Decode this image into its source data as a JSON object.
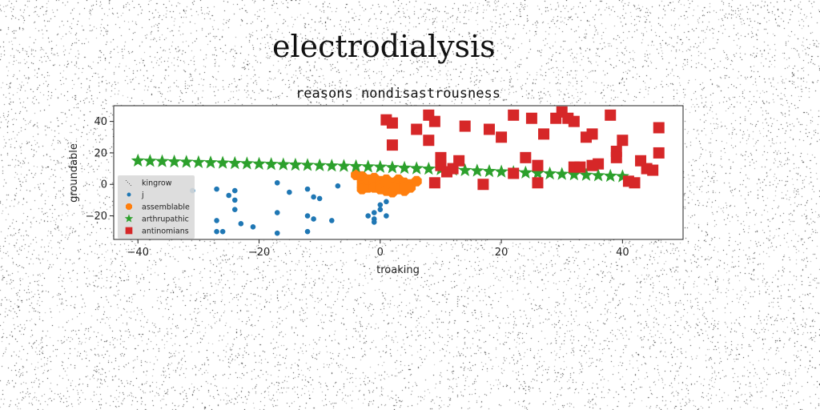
{
  "figure_title": "electrodialysis",
  "chart_data": {
    "type": "scatter",
    "title": "reasons nondisastrousness",
    "xlabel": "troaking",
    "ylabel": "groundable",
    "xlim": [
      -44,
      50
    ],
    "ylim": [
      -35,
      50
    ],
    "xticks": [
      -40,
      -20,
      0,
      20,
      40
    ],
    "yticks": [
      -20,
      0,
      20,
      40
    ],
    "grid": false,
    "legend_position": "lower-left",
    "series": [
      {
        "name": "kingrow",
        "marker": "pixel",
        "color": "#1f77b4",
        "points": []
      },
      {
        "name": "j",
        "marker": "circle",
        "color": "#1f77b4",
        "points": [
          [
            -31,
            -4
          ],
          [
            -27,
            -3
          ],
          [
            -27,
            -23
          ],
          [
            -27,
            -30
          ],
          [
            -26,
            -30
          ],
          [
            -25,
            -7
          ],
          [
            -24,
            -10
          ],
          [
            -24,
            -4
          ],
          [
            -24,
            -16
          ],
          [
            -23,
            -25
          ],
          [
            -21,
            -27
          ],
          [
            -17,
            1
          ],
          [
            -17,
            -18
          ],
          [
            -17,
            -31
          ],
          [
            -15,
            -5
          ],
          [
            -12,
            -3
          ],
          [
            -12,
            -20
          ],
          [
            -12,
            -30
          ],
          [
            -11,
            -8
          ],
          [
            -11,
            -22
          ],
          [
            -10,
            -9
          ],
          [
            -8,
            -23
          ],
          [
            -7,
            -1
          ],
          [
            -2,
            -20
          ],
          [
            -1,
            -18
          ],
          [
            -1,
            -22
          ],
          [
            -1,
            -24
          ],
          [
            0,
            -16
          ],
          [
            0,
            -13
          ],
          [
            1,
            -20
          ],
          [
            1,
            -11
          ]
        ]
      },
      {
        "name": "assemblable",
        "marker": "octagon",
        "color": "#ff7f0e",
        "points": [
          [
            -4,
            6
          ],
          [
            -3,
            5
          ],
          [
            -3,
            2
          ],
          [
            -3,
            -1
          ],
          [
            -3,
            -3
          ],
          [
            -2,
            0
          ],
          [
            -2,
            -2
          ],
          [
            -2,
            3
          ],
          [
            -1,
            4
          ],
          [
            -1,
            1
          ],
          [
            -1,
            -2
          ],
          [
            0,
            2
          ],
          [
            0,
            -1
          ],
          [
            0,
            -3
          ],
          [
            1,
            3
          ],
          [
            1,
            0
          ],
          [
            1,
            -4
          ],
          [
            2,
            1
          ],
          [
            2,
            -2
          ],
          [
            2,
            -5
          ],
          [
            3,
            3
          ],
          [
            3,
            0
          ],
          [
            3,
            -3
          ],
          [
            4,
            1
          ],
          [
            4,
            -4
          ],
          [
            4,
            -2
          ],
          [
            5,
            0
          ],
          [
            5,
            -2
          ],
          [
            6,
            2
          ]
        ]
      },
      {
        "name": "arthrupathic",
        "marker": "star",
        "color": "#2ca02c",
        "points": [
          [
            -40,
            15
          ],
          [
            -38,
            14.8
          ],
          [
            -36,
            14.6
          ],
          [
            -34,
            14.4
          ],
          [
            -32,
            14.2
          ],
          [
            -30,
            14
          ],
          [
            -28,
            13.8
          ],
          [
            -26,
            13.6
          ],
          [
            -24,
            13.4
          ],
          [
            -22,
            13.2
          ],
          [
            -20,
            13
          ],
          [
            -18,
            12.8
          ],
          [
            -16,
            12.6
          ],
          [
            -14,
            12.4
          ],
          [
            -12,
            12.2
          ],
          [
            -10,
            12
          ],
          [
            -8,
            11.8
          ],
          [
            -6,
            11.6
          ],
          [
            -4,
            11.4
          ],
          [
            -2,
            11.2
          ],
          [
            0,
            11
          ],
          [
            2,
            10.7
          ],
          [
            4,
            10.4
          ],
          [
            6,
            10.1
          ],
          [
            8,
            9.8
          ],
          [
            10,
            9.5
          ],
          [
            12,
            9.2
          ],
          [
            14,
            8.9
          ],
          [
            16,
            8.6
          ],
          [
            18,
            8.3
          ],
          [
            20,
            8
          ],
          [
            22,
            7.7
          ],
          [
            24,
            7.4
          ],
          [
            26,
            7.1
          ],
          [
            28,
            6.8
          ],
          [
            30,
            6.5
          ],
          [
            32,
            6.2
          ],
          [
            34,
            5.9
          ],
          [
            36,
            5.6
          ],
          [
            38,
            5.3
          ],
          [
            40,
            5
          ]
        ]
      },
      {
        "name": "antinomians",
        "marker": "square",
        "color": "#d62728",
        "points": [
          [
            1,
            41
          ],
          [
            2,
            39
          ],
          [
            2,
            25
          ],
          [
            6,
            35
          ],
          [
            8,
            44
          ],
          [
            8,
            28
          ],
          [
            9,
            1
          ],
          [
            9,
            40
          ],
          [
            10,
            12
          ],
          [
            10,
            17
          ],
          [
            11,
            8
          ],
          [
            12,
            10
          ],
          [
            13,
            15
          ],
          [
            14,
            37
          ],
          [
            17,
            0
          ],
          [
            18,
            35
          ],
          [
            20,
            30
          ],
          [
            22,
            7
          ],
          [
            22,
            44
          ],
          [
            24,
            17
          ],
          [
            25,
            42
          ],
          [
            26,
            12
          ],
          [
            26,
            1
          ],
          [
            27,
            32
          ],
          [
            29,
            42
          ],
          [
            30,
            46
          ],
          [
            31,
            42
          ],
          [
            32,
            40
          ],
          [
            32,
            11
          ],
          [
            33,
            11
          ],
          [
            34,
            30
          ],
          [
            35,
            12
          ],
          [
            35,
            32
          ],
          [
            36,
            13
          ],
          [
            38,
            44
          ],
          [
            39,
            21
          ],
          [
            39,
            17
          ],
          [
            40,
            28
          ],
          [
            41,
            2
          ],
          [
            42,
            1
          ],
          [
            43,
            15
          ],
          [
            44,
            10
          ],
          [
            45,
            9
          ],
          [
            46,
            20
          ],
          [
            46,
            36
          ]
        ]
      }
    ]
  }
}
